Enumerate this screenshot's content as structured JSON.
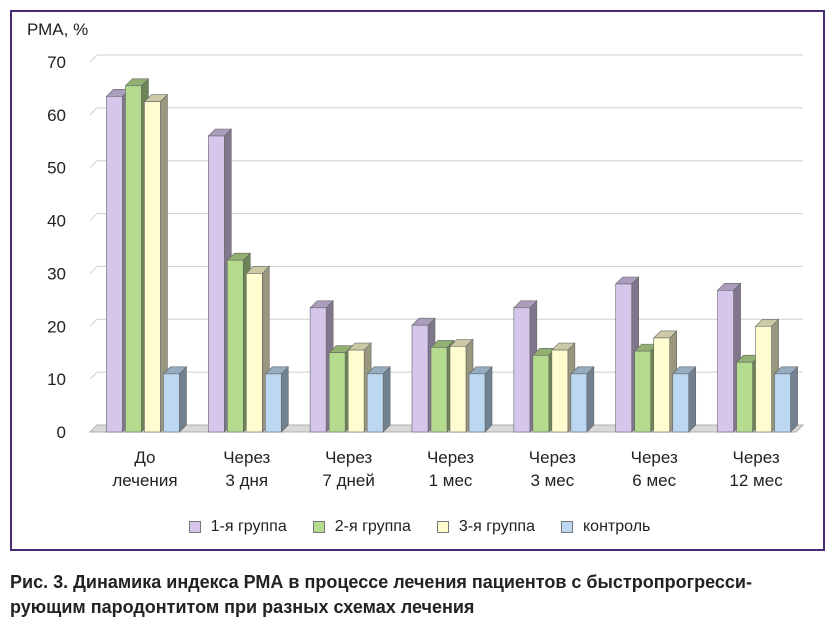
{
  "chart_data": {
    "type": "bar",
    "ylabel": "РМА, %",
    "ylim": [
      0,
      70
    ],
    "yticks": [
      0,
      10,
      20,
      30,
      40,
      50,
      60,
      70
    ],
    "categories": [
      [
        "До",
        "лечения"
      ],
      [
        "Через",
        "3 дня"
      ],
      [
        "Через",
        "7 дней"
      ],
      [
        "Через",
        "1 мес"
      ],
      [
        "Через",
        "3 мес"
      ],
      [
        "Через",
        "6 мес"
      ],
      [
        "Через",
        "12 мес"
      ]
    ],
    "series": [
      {
        "name": "1-я группа",
        "values": [
          63.5,
          56,
          23.5,
          20.2,
          23.5,
          28,
          26.8
        ],
        "color": "#d6c6ec"
      },
      {
        "name": "2-я группа",
        "values": [
          65.5,
          32.5,
          15,
          16,
          14.5,
          15.3,
          13.2
        ],
        "color": "#b5dc8e"
      },
      {
        "name": "3-я группа",
        "values": [
          62.5,
          30,
          15.5,
          16.2,
          15.5,
          17.8,
          20
        ],
        "color": "#fffcd0"
      },
      {
        "name": "контроль",
        "values": [
          11,
          11,
          11,
          11,
          11,
          11,
          11
        ],
        "color": "#bcd7f0"
      }
    ],
    "grid": true,
    "legend": "bottom"
  },
  "caption": "Рис. 3. Динамика индекса РМА в процессе лечения пациентов с быстропрогресси-рующим пародонтитом при разных схемах лечения",
  "caption_lines": [
    "Рис. 3. Динамика индекса РМА в процессе лечения пациентов с быстропрогресси-",
    "рующим пародонтитом при разных схемах лечения"
  ]
}
